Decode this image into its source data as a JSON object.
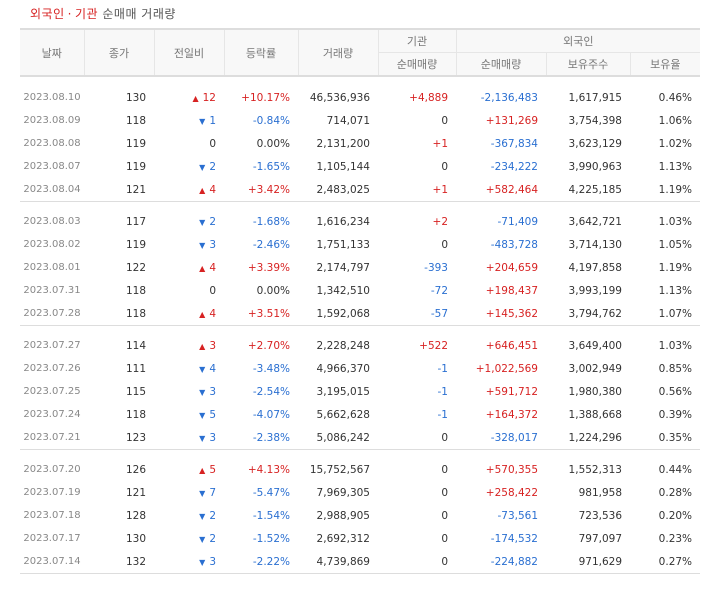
{
  "title": {
    "part1": "외국인",
    "sep": "·",
    "part2": "기관",
    "part3": "순매매 거래량"
  },
  "headers": {
    "date": "날짜",
    "close": "종가",
    "change": "전일비",
    "rate": "등락률",
    "volume": "거래량",
    "inst_group": "기관",
    "inst_net": "순매매량",
    "foreign_group": "외국인",
    "foreign_net": "순매매량",
    "foreign_hold": "보유주수",
    "foreign_ratio": "보유율"
  },
  "groups": [
    [
      {
        "date": "2023.08.10",
        "close": "130",
        "dir": "up",
        "chg": "12",
        "rate": "+10.17%",
        "vol": "46,536,936",
        "inst": "+4,889",
        "fnet": "-2,136,483",
        "hold": "1,617,915",
        "ratio": "0.46%"
      },
      {
        "date": "2023.08.09",
        "close": "118",
        "dir": "down",
        "chg": "1",
        "rate": "-0.84%",
        "vol": "714,071",
        "inst": "0",
        "fnet": "+131,269",
        "hold": "3,754,398",
        "ratio": "1.06%"
      },
      {
        "date": "2023.08.08",
        "close": "119",
        "dir": "none",
        "chg": "0",
        "rate": "0.00%",
        "vol": "2,131,200",
        "inst": "+1",
        "fnet": "-367,834",
        "hold": "3,623,129",
        "ratio": "1.02%"
      },
      {
        "date": "2023.08.07",
        "close": "119",
        "dir": "down",
        "chg": "2",
        "rate": "-1.65%",
        "vol": "1,105,144",
        "inst": "0",
        "fnet": "-234,222",
        "hold": "3,990,963",
        "ratio": "1.13%"
      },
      {
        "date": "2023.08.04",
        "close": "121",
        "dir": "up",
        "chg": "4",
        "rate": "+3.42%",
        "vol": "2,483,025",
        "inst": "+1",
        "fnet": "+582,464",
        "hold": "4,225,185",
        "ratio": "1.19%"
      }
    ],
    [
      {
        "date": "2023.08.03",
        "close": "117",
        "dir": "down",
        "chg": "2",
        "rate": "-1.68%",
        "vol": "1,616,234",
        "inst": "+2",
        "fnet": "-71,409",
        "hold": "3,642,721",
        "ratio": "1.03%"
      },
      {
        "date": "2023.08.02",
        "close": "119",
        "dir": "down",
        "chg": "3",
        "rate": "-2.46%",
        "vol": "1,751,133",
        "inst": "0",
        "fnet": "-483,728",
        "hold": "3,714,130",
        "ratio": "1.05%"
      },
      {
        "date": "2023.08.01",
        "close": "122",
        "dir": "up",
        "chg": "4",
        "rate": "+3.39%",
        "vol": "2,174,797",
        "inst": "-393",
        "fnet": "+204,659",
        "hold": "4,197,858",
        "ratio": "1.19%"
      },
      {
        "date": "2023.07.31",
        "close": "118",
        "dir": "none",
        "chg": "0",
        "rate": "0.00%",
        "vol": "1,342,510",
        "inst": "-72",
        "fnet": "+198,437",
        "hold": "3,993,199",
        "ratio": "1.13%"
      },
      {
        "date": "2023.07.28",
        "close": "118",
        "dir": "up",
        "chg": "4",
        "rate": "+3.51%",
        "vol": "1,592,068",
        "inst": "-57",
        "fnet": "+145,362",
        "hold": "3,794,762",
        "ratio": "1.07%"
      }
    ],
    [
      {
        "date": "2023.07.27",
        "close": "114",
        "dir": "up",
        "chg": "3",
        "rate": "+2.70%",
        "vol": "2,228,248",
        "inst": "+522",
        "fnet": "+646,451",
        "hold": "3,649,400",
        "ratio": "1.03%"
      },
      {
        "date": "2023.07.26",
        "close": "111",
        "dir": "down",
        "chg": "4",
        "rate": "-3.48%",
        "vol": "4,966,370",
        "inst": "-1",
        "fnet": "+1,022,569",
        "hold": "3,002,949",
        "ratio": "0.85%"
      },
      {
        "date": "2023.07.25",
        "close": "115",
        "dir": "down",
        "chg": "3",
        "rate": "-2.54%",
        "vol": "3,195,015",
        "inst": "-1",
        "fnet": "+591,712",
        "hold": "1,980,380",
        "ratio": "0.56%"
      },
      {
        "date": "2023.07.24",
        "close": "118",
        "dir": "down",
        "chg": "5",
        "rate": "-4.07%",
        "vol": "5,662,628",
        "inst": "-1",
        "fnet": "+164,372",
        "hold": "1,388,668",
        "ratio": "0.39%"
      },
      {
        "date": "2023.07.21",
        "close": "123",
        "dir": "down",
        "chg": "3",
        "rate": "-2.38%",
        "vol": "5,086,242",
        "inst": "0",
        "fnet": "-328,017",
        "hold": "1,224,296",
        "ratio": "0.35%"
      }
    ],
    [
      {
        "date": "2023.07.20",
        "close": "126",
        "dir": "up",
        "chg": "5",
        "rate": "+4.13%",
        "vol": "15,752,567",
        "inst": "0",
        "fnet": "+570,355",
        "hold": "1,552,313",
        "ratio": "0.44%"
      },
      {
        "date": "2023.07.19",
        "close": "121",
        "dir": "down",
        "chg": "7",
        "rate": "-5.47%",
        "vol": "7,969,305",
        "inst": "0",
        "fnet": "+258,422",
        "hold": "981,958",
        "ratio": "0.28%"
      },
      {
        "date": "2023.07.18",
        "close": "128",
        "dir": "down",
        "chg": "2",
        "rate": "-1.54%",
        "vol": "2,988,905",
        "inst": "0",
        "fnet": "-73,561",
        "hold": "723,536",
        "ratio": "0.20%"
      },
      {
        "date": "2023.07.17",
        "close": "130",
        "dir": "down",
        "chg": "2",
        "rate": "-1.52%",
        "vol": "2,692,312",
        "inst": "0",
        "fnet": "-174,532",
        "hold": "797,097",
        "ratio": "0.23%"
      },
      {
        "date": "2023.07.14",
        "close": "132",
        "dir": "down",
        "chg": "3",
        "rate": "-2.22%",
        "vol": "4,739,869",
        "inst": "0",
        "fnet": "-224,882",
        "hold": "971,629",
        "ratio": "0.27%"
      }
    ]
  ],
  "colors": {
    "up": "#d72222",
    "down": "#2a6fd1"
  },
  "icons": {
    "up": "triangle-up-icon",
    "down": "triangle-down-icon"
  }
}
